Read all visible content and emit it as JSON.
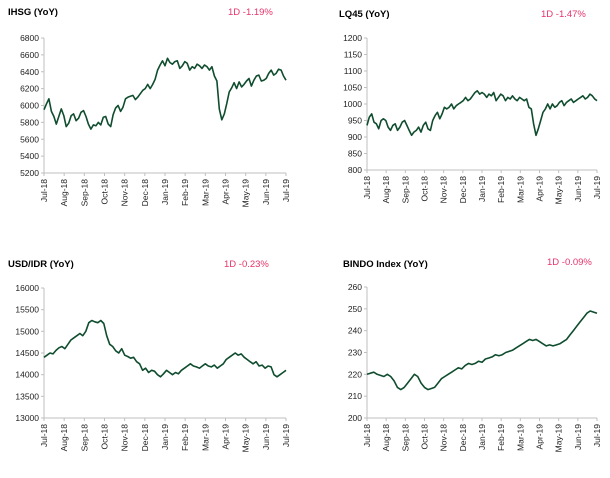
{
  "colors": {
    "line": "#0f4d2e",
    "change": "#e8336b",
    "axis": "#bfbfbf"
  },
  "chart_data": [
    {
      "type": "line",
      "title": "IHSG (YoY)",
      "change_label": "1D -1.19%",
      "ylim": [
        5200,
        6800
      ],
      "yticks": [
        5200,
        5400,
        5600,
        5800,
        6000,
        6200,
        6400,
        6600,
        6800
      ],
      "xticks": [
        "Jul-18",
        "Aug-18",
        "Sep-18",
        "Oct-18",
        "Nov-18",
        "Dec-18",
        "Jan-19",
        "Feb-19",
        "Mar-19",
        "Apr-19",
        "May-19",
        "Jun-19",
        "Jul-19"
      ],
      "grid": false,
      "series": [
        {
          "values": [
            5950,
            6020,
            6080,
            5930,
            5870,
            5780,
            5870,
            5960,
            5880,
            5750,
            5790,
            5880,
            5900,
            5820,
            5850,
            5920,
            5940,
            5870,
            5780,
            5720,
            5770,
            5760,
            5800,
            5770,
            5860,
            5870,
            5780,
            5750,
            5890,
            5970,
            6000,
            5930,
            5980,
            6080,
            6100,
            6110,
            6120,
            6070,
            6100,
            6140,
            6180,
            6200,
            6250,
            6200,
            6250,
            6310,
            6420,
            6480,
            6530,
            6470,
            6560,
            6510,
            6490,
            6520,
            6530,
            6440,
            6470,
            6520,
            6500,
            6420,
            6460,
            6440,
            6490,
            6470,
            6440,
            6480,
            6460,
            6420,
            6460,
            6350,
            6290,
            5960,
            5830,
            5900,
            6020,
            6160,
            6210,
            6270,
            6200,
            6280,
            6220,
            6250,
            6290,
            6320,
            6230,
            6300,
            6350,
            6360,
            6290,
            6300,
            6320,
            6380,
            6420,
            6360,
            6380,
            6430,
            6420,
            6350,
            6300
          ]
        }
      ]
    },
    {
      "type": "line",
      "title": "LQ45 (YoY)",
      "change_label": "1D -1.47%",
      "ylim": [
        800,
        1200
      ],
      "yticks": [
        800,
        850,
        900,
        950,
        1000,
        1050,
        1100,
        1150,
        1200
      ],
      "xticks": [
        "Jul-18",
        "Aug-18",
        "Sep-18",
        "Oct-18",
        "Nov-18",
        "Dec-18",
        "Jan-19",
        "Feb-19",
        "Mar-19",
        "Apr-19",
        "May-19",
        "Jun-19",
        "Jul-19"
      ],
      "grid": false,
      "series": [
        {
          "values": [
            935,
            960,
            970,
            945,
            940,
            925,
            950,
            955,
            950,
            930,
            920,
            935,
            940,
            920,
            930,
            945,
            950,
            935,
            920,
            905,
            915,
            920,
            930,
            915,
            935,
            945,
            925,
            920,
            950,
            965,
            975,
            955,
            970,
            990,
            985,
            990,
            1000,
            985,
            995,
            1000,
            1005,
            1010,
            1020,
            1010,
            1015,
            1025,
            1035,
            1040,
            1030,
            1035,
            1030,
            1020,
            1030,
            1025,
            1035,
            1010,
            1020,
            1030,
            1025,
            1010,
            1020,
            1015,
            1025,
            1015,
            1010,
            1020,
            1015,
            1010,
            1015,
            990,
            985,
            940,
            905,
            925,
            950,
            975,
            985,
            1000,
            985,
            1000,
            990,
            995,
            1005,
            1010,
            995,
            1005,
            1010,
            1015,
            1005,
            1010,
            1015,
            1020,
            1025,
            1015,
            1020,
            1030,
            1025,
            1015,
            1010
          ]
        }
      ]
    },
    {
      "type": "line",
      "title": "USD/IDR (YoY)",
      "change_label": "1D -0.23%",
      "ylim": [
        13000,
        16000
      ],
      "yticks": [
        13000,
        13500,
        14000,
        14500,
        15000,
        15500,
        16000
      ],
      "xticks": [
        "Jul-18",
        "Aug-18",
        "Sep-18",
        "Oct-18",
        "Nov-18",
        "Dec-18",
        "Jan-19",
        "Feb-19",
        "Mar-19",
        "Apr-19",
        "May-19",
        "Jun-19",
        "Jul-19"
      ],
      "grid": false,
      "series": [
        {
          "values": [
            14400,
            14450,
            14500,
            14480,
            14560,
            14620,
            14650,
            14600,
            14700,
            14800,
            14850,
            14900,
            14950,
            14900,
            15000,
            15200,
            15250,
            15220,
            15200,
            15250,
            15180,
            14900,
            14700,
            14650,
            14550,
            14500,
            14600,
            14450,
            14420,
            14380,
            14400,
            14300,
            14250,
            14100,
            14150,
            14050,
            14100,
            14080,
            14000,
            13950,
            14020,
            14100,
            14050,
            14000,
            14050,
            14020,
            14100,
            14150,
            14200,
            14250,
            14200,
            14180,
            14150,
            14200,
            14250,
            14200,
            14180,
            14220,
            14150,
            14200,
            14250,
            14350,
            14400,
            14450,
            14500,
            14450,
            14480,
            14400,
            14350,
            14300,
            14250,
            14300,
            14200,
            14220,
            14150,
            14200,
            14180,
            14000,
            13950,
            14000,
            14050,
            14100
          ]
        }
      ]
    },
    {
      "type": "line",
      "title": "BINDO Index (YoY)",
      "change_label": "1D -0.09%",
      "ylim": [
        200,
        260
      ],
      "yticks": [
        200,
        210,
        220,
        230,
        240,
        250,
        260
      ],
      "xticks": [
        "Jul-18",
        "Aug-18",
        "Sep-18",
        "Oct-18",
        "Nov-18",
        "Dec-18",
        "Jan-19",
        "Feb-19",
        "Mar-19",
        "Apr-19",
        "May-19",
        "Jun-19",
        "Jul-19"
      ],
      "grid": false,
      "series": [
        {
          "values": [
            220,
            220.5,
            221,
            220,
            219.5,
            219,
            220,
            219,
            217,
            214,
            213,
            214,
            216,
            218,
            220,
            219,
            216,
            214,
            213,
            213.5,
            214,
            216,
            218,
            219,
            220,
            221,
            222,
            223,
            222.5,
            224,
            225,
            224.5,
            225,
            226,
            225.5,
            227,
            227.5,
            228,
            229,
            228.5,
            229,
            230,
            230.5,
            231,
            232,
            233,
            234,
            235,
            236,
            235.5,
            236,
            235,
            234,
            233,
            233.5,
            233,
            233.5,
            234,
            235,
            236,
            238,
            240,
            242,
            244,
            246,
            248,
            249,
            248.5,
            248
          ]
        }
      ]
    }
  ]
}
